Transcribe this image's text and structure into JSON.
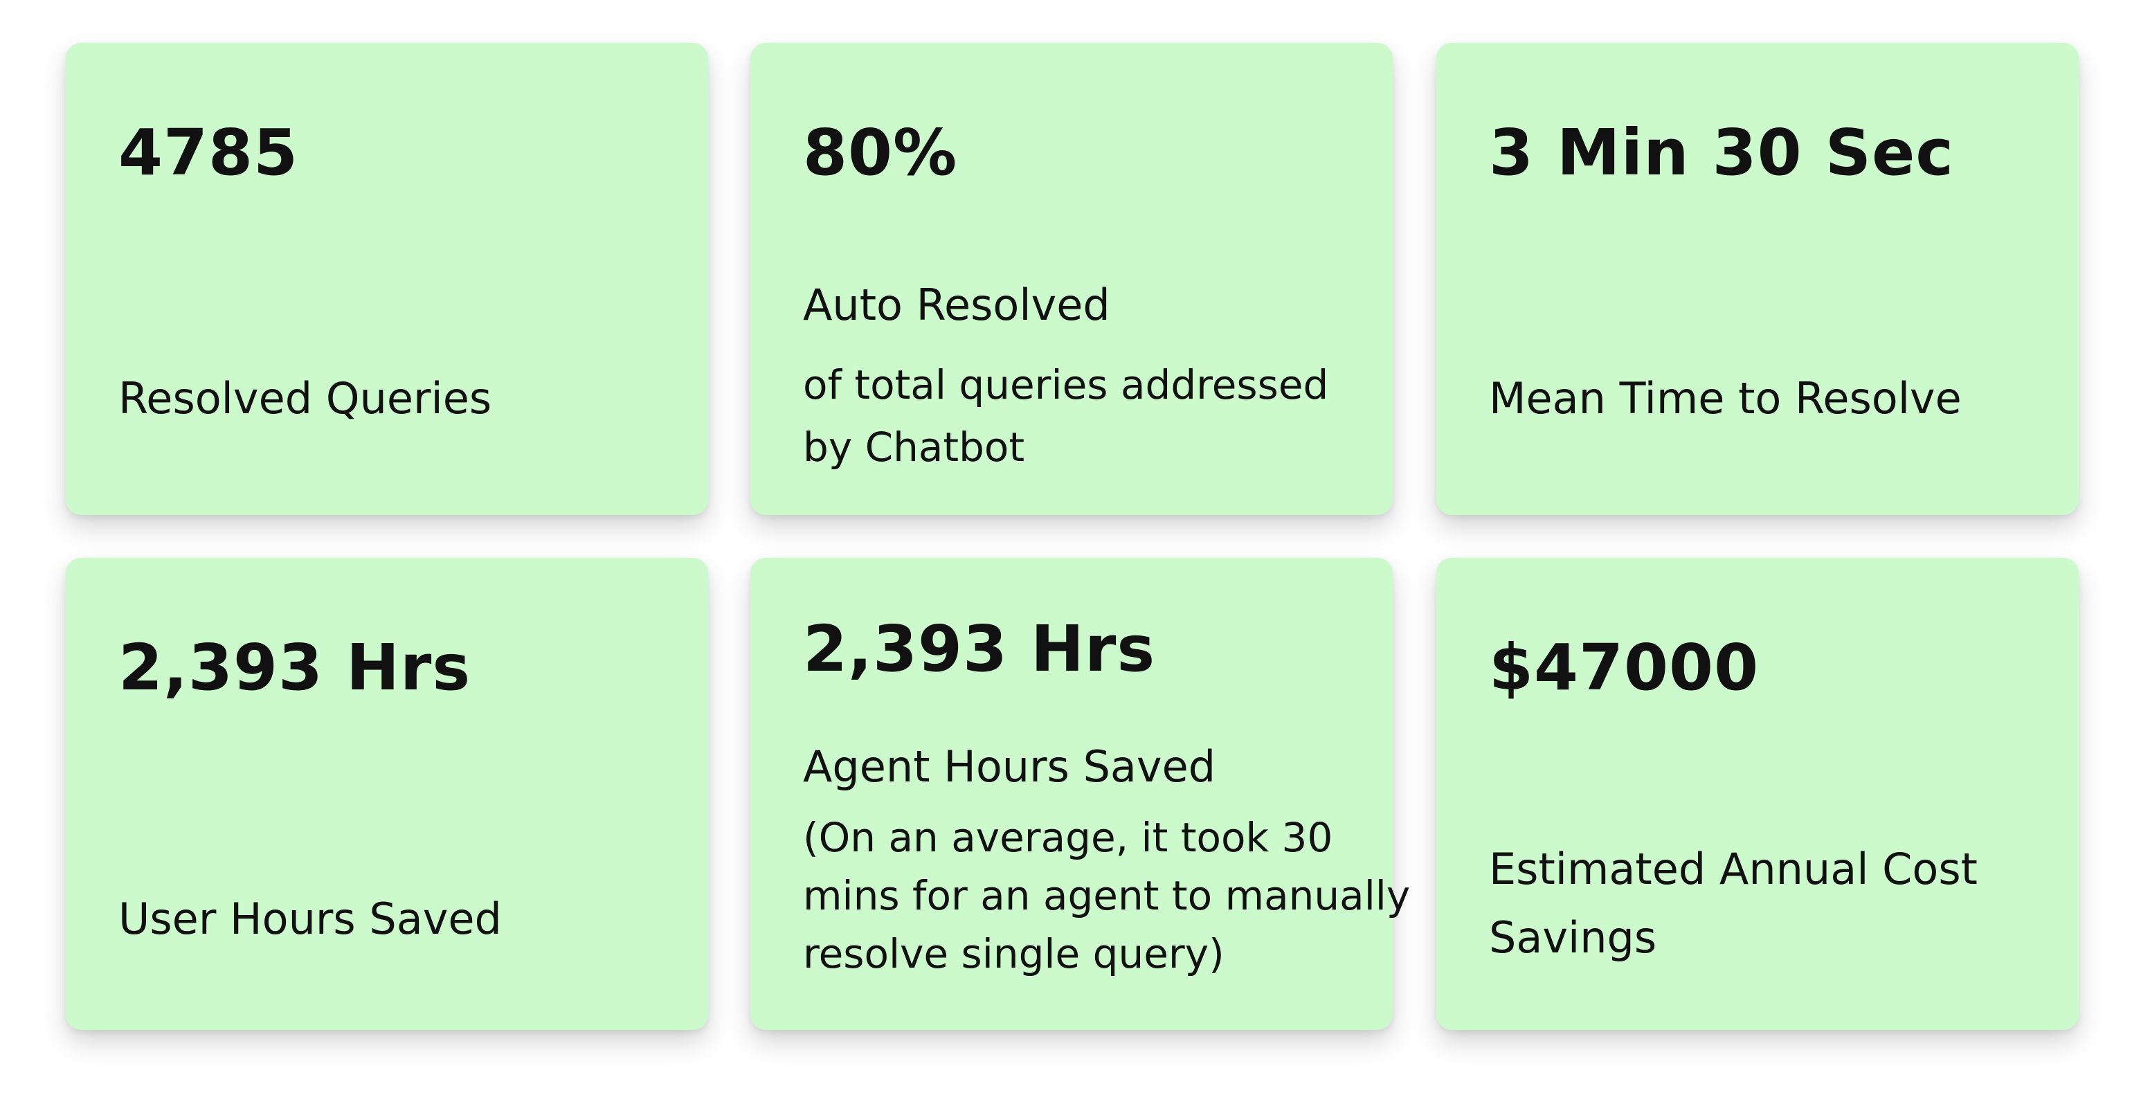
{
  "cards": [
    {
      "value": "4785",
      "label": "Resolved Queries",
      "sub_lines": []
    },
    {
      "value": "80%",
      "label": "Auto Resolved",
      "sub_lines": [
        "of total queries addressed",
        "by Chatbot"
      ]
    },
    {
      "value": "3 Min 30 Sec",
      "label": "Mean Time to Resolve",
      "sub_lines": []
    },
    {
      "value": "2,393 Hrs",
      "label": "User Hours Saved",
      "sub_lines": []
    },
    {
      "value": "2,393 Hrs",
      "label": "Agent Hours Saved",
      "sub_lines": [
        "(On an average, it took 30",
        "mins for an agent to manually",
        "resolve single query)"
      ]
    },
    {
      "value": "$47000",
      "label_lines": [
        "Estimated Annual Cost",
        "Savings"
      ]
    }
  ],
  "colors": {
    "card_background": "#ccfacc",
    "text": "#111111",
    "page_background": "#ffffff"
  }
}
